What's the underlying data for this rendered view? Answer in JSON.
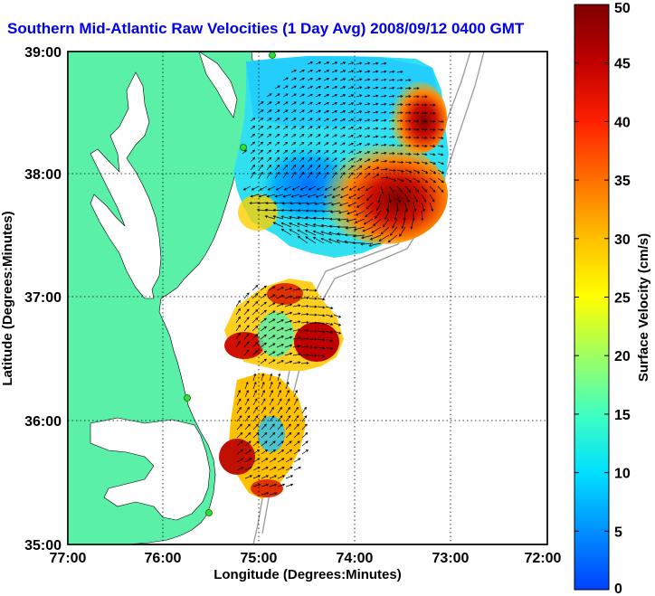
{
  "title": "Southern Mid-Atlantic Raw Velocities (1 Day Avg) 2008/09/12 0400 GMT",
  "x_axis": {
    "label": "Longitude (Degrees:Minutes)",
    "ticks": [
      "77:00",
      "76:00",
      "75:00",
      "74:00",
      "73:00",
      "72:00"
    ]
  },
  "y_axis": {
    "label": "Latitude (Degrees:Minutes)",
    "ticks": [
      "39:00",
      "38:00",
      "37:00",
      "36:00",
      "35:00"
    ]
  },
  "colorbar": {
    "label": "Surface Velocity (cm/s)",
    "ticks": [
      "50",
      "45",
      "40",
      "35",
      "30",
      "25",
      "20",
      "15",
      "10",
      "5",
      "0"
    ],
    "colors": [
      "#0040ff",
      "#0090ff",
      "#00e0ff",
      "#40ffc0",
      "#a0ff60",
      "#ffff00",
      "#ffc000",
      "#ff7000",
      "#ff2000",
      "#c00000",
      "#800000"
    ]
  },
  "colors": {
    "land": "#5af0a8",
    "water_bg": "#ffffff",
    "title": "#0000ee",
    "station": "#33dd33",
    "bathymetry": "#999999"
  },
  "legend_icons": [
    "velocity-arrow-icon",
    "hf-radar-station-icon"
  ]
}
